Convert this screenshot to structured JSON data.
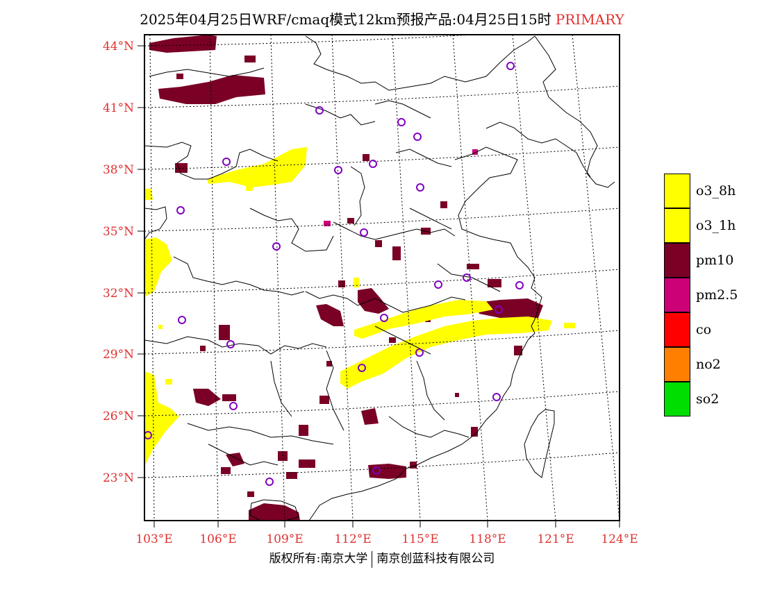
{
  "title": {
    "main": "2025年04月25日WRF/cmaq模式12km预报产品:04月25日15时",
    "tag": "PRIMARY"
  },
  "axes": {
    "lat_labels": [
      "44°N",
      "41°N",
      "38°N",
      "35°N",
      "32°N",
      "29°N",
      "26°N",
      "23°N"
    ],
    "lon_labels": [
      "103°E",
      "106°E",
      "109°E",
      "112°E",
      "115°E",
      "118°E",
      "121°E",
      "124°E"
    ],
    "label_color": "#e03030"
  },
  "legend": [
    {
      "label": "o3_8h",
      "color": "#ffff00"
    },
    {
      "label": "o3_1h",
      "color": "#ffff00"
    },
    {
      "label": "pm10",
      "color": "#7a0026"
    },
    {
      "label": "pm2.5",
      "color": "#cc0077"
    },
    {
      "label": "co",
      "color": "#ff0000"
    },
    {
      "label": "no2",
      "color": "#ff8000"
    },
    {
      "label": "so2",
      "color": "#00dd00"
    }
  ],
  "credit": {
    "left": "版权所有:南京大学",
    "right": "南京创蓝科技有限公司"
  }
}
